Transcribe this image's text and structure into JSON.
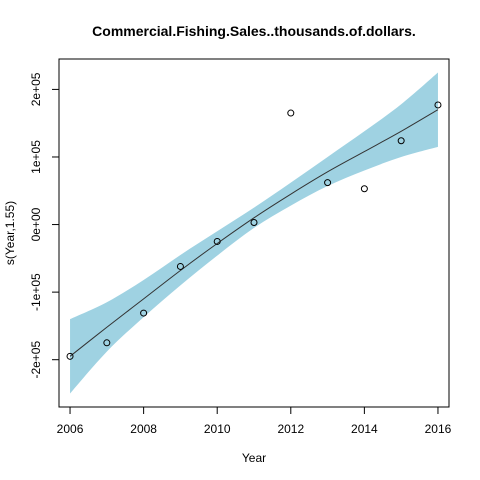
{
  "chart_data": {
    "type": "scatter",
    "title": "Commercial.Fishing.Sales..thousands.of.dollars.",
    "xlabel": "Year",
    "ylabel": "s(Year,1.55)",
    "xlim": [
      2005.7,
      2016.3
    ],
    "ylim": [
      -270000,
      245000
    ],
    "x_ticks": [
      2006,
      2008,
      2010,
      2012,
      2014,
      2016
    ],
    "x_tick_labels": [
      "2006",
      "2008",
      "2010",
      "2012",
      "2014",
      "2016"
    ],
    "y_ticks": [
      -200000,
      -100000,
      0,
      100000,
      200000
    ],
    "y_tick_labels": [
      "-2e+05",
      "-1e+05",
      "0e+00",
      "1e+05",
      "2e+05"
    ],
    "grid": false,
    "colors": {
      "band": "#9fd2e2",
      "line": "#333333",
      "points": "#000000"
    },
    "points": {
      "x": [
        2006,
        2007,
        2008,
        2009,
        2010,
        2011,
        2012,
        2013,
        2014,
        2015,
        2016
      ],
      "y": [
        -195000,
        -175000,
        -131000,
        -62000,
        -25000,
        3000,
        165000,
        62000,
        53000,
        124000,
        177000
      ]
    },
    "smooth": {
      "x": [
        2006,
        2007,
        2008,
        2009,
        2010,
        2011,
        2012,
        2013,
        2014,
        2015,
        2016
      ],
      "fit": [
        -195000,
        -152000,
        -110000,
        -68000,
        -28000,
        10000,
        45000,
        78000,
        108000,
        138000,
        170000
      ],
      "upper": [
        -140000,
        -115000,
        -82000,
        -45000,
        -10000,
        25000,
        62000,
        100000,
        138000,
        178000,
        225000
      ],
      "lower": [
        -250000,
        -188000,
        -137000,
        -90000,
        -46000,
        -5000,
        28000,
        57000,
        80000,
        100000,
        115000
      ]
    }
  }
}
